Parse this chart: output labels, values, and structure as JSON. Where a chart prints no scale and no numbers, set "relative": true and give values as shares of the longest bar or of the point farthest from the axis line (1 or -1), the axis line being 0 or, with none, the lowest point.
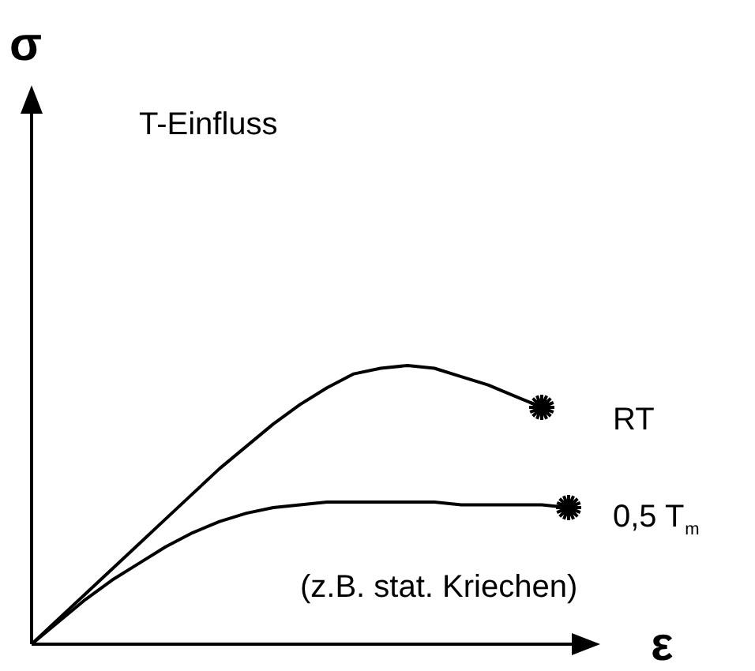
{
  "chart_data": {
    "type": "line",
    "relative": true,
    "title": "T-Einfluss",
    "xlabel": "ε",
    "annotations": [
      "σ",
      "(z.B. stat. Kriechen)"
    ],
    "legend": "right",
    "categories": [
      null,
      null,
      null,
      null,
      null,
      null,
      null,
      null,
      null,
      null,
      null,
      null,
      null,
      null,
      null,
      null,
      null,
      null,
      null,
      null,
      null
    ],
    "series": [
      {
        "name": "RT",
        "color": "#000000",
        "values": [
          0,
          0.09,
          0.18,
          0.27,
          0.36,
          0.45,
          0.54,
          0.63,
          0.71,
          0.79,
          0.86,
          0.92,
          0.97,
          0.99,
          1,
          0.99,
          0.96,
          0.93,
          0.89,
          0.85,
          null
        ]
      },
      {
        "name": "0,5 T$_{m}$",
        "color": "#000000",
        "values": [
          0,
          0.08,
          0.16,
          0.23,
          0.29,
          0.35,
          0.4,
          0.44,
          0.47,
          0.49,
          0.5,
          0.51,
          0.51,
          0.51,
          0.51,
          0.51,
          0.5,
          0.5,
          0.5,
          0.5,
          0.49
        ]
      }
    ]
  }
}
